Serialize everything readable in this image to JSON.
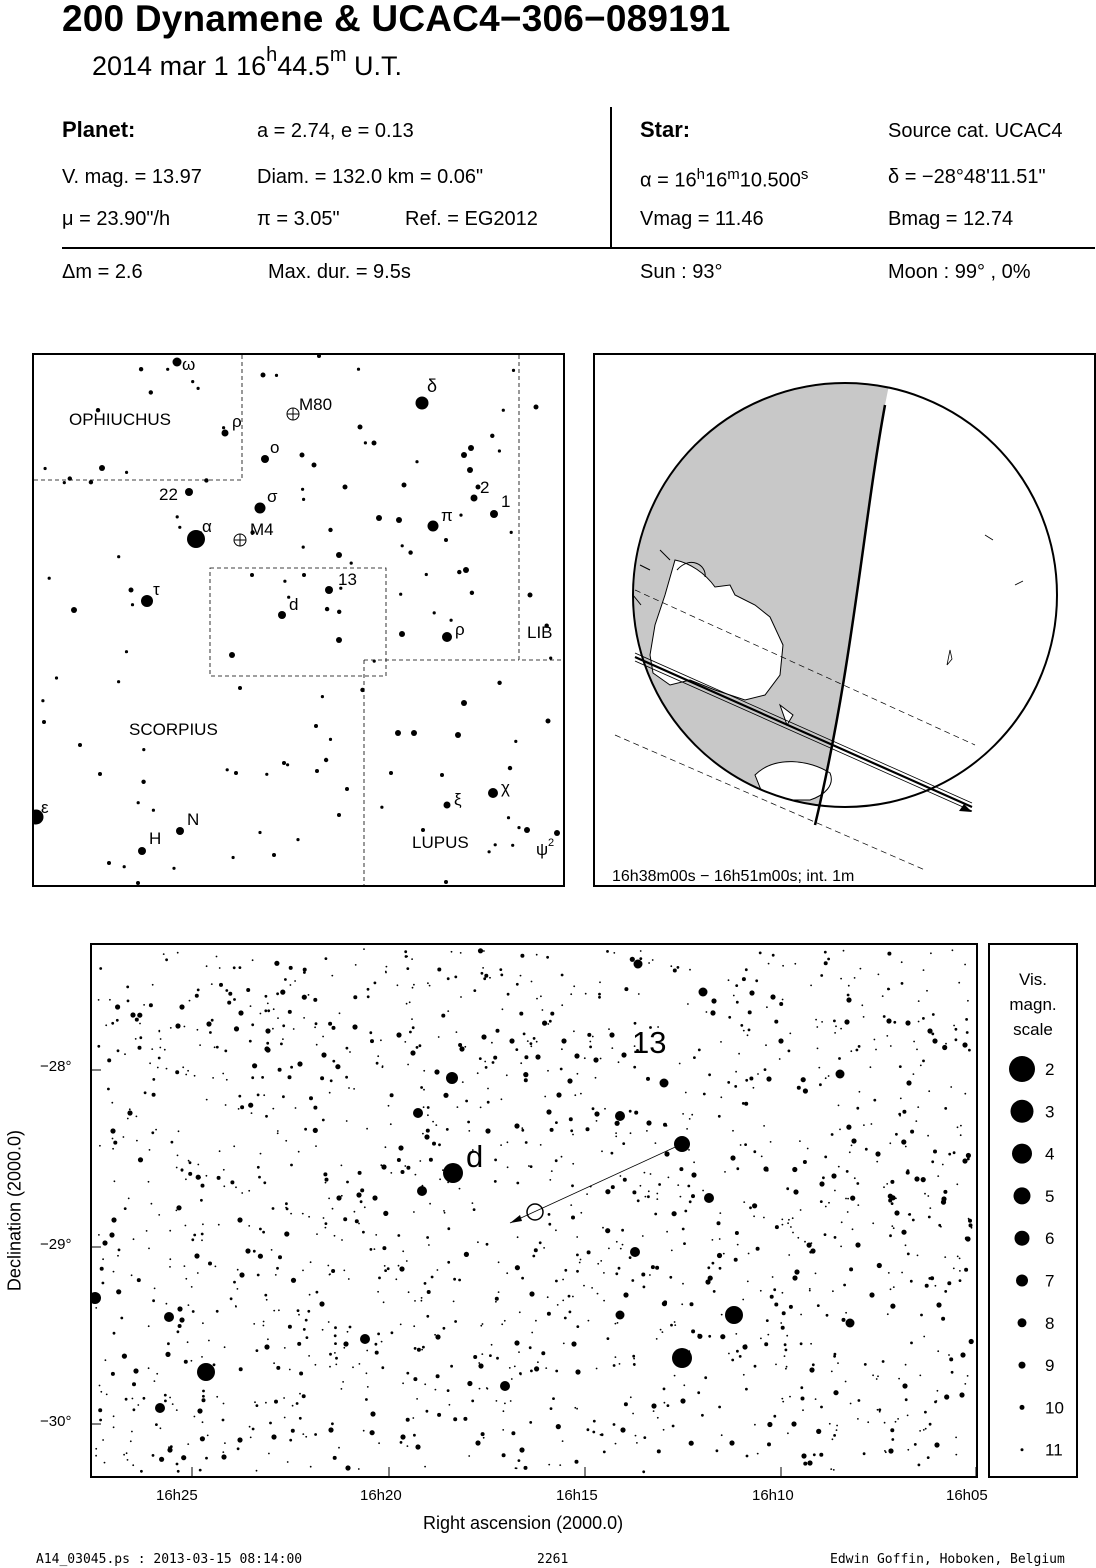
{
  "header": {
    "title": "200 Dynamene  &  UCAC4−306−089191",
    "subtitle_date": "2014 mar  1  16",
    "subtitle_h": "h",
    "subtitle_min": "44.5",
    "subtitle_m": "m",
    "subtitle_ut": " U.T."
  },
  "planet": {
    "heading": "Planet:",
    "orbit": "a = 2.74, e = 0.13",
    "vmag": "V. mag. = 13.97",
    "diam": "Diam. = 132.0 km = 0.06\"",
    "mu": "μ =  23.90\"/h",
    "pi": "π =  3.05\"",
    "ref": "Ref. = EG2012"
  },
  "star": {
    "heading": "Star:",
    "source": "Source cat.  UCAC4",
    "alpha_prefix": "α = 16",
    "alpha_h": "h",
    "alpha_mid": "16",
    "alpha_m": "m",
    "alpha_sec": "10.500",
    "alpha_s": "s",
    "delta": "δ = −28°48'11.51\"",
    "vmag": "Vmag = 11.46",
    "bmag": "Bmag = 12.74"
  },
  "event": {
    "dm": "Δm = 2.6",
    "maxdur": "Max. dur. = 9.5s",
    "sun": "Sun :  93°",
    "moon": "Moon :  99° ,  0%"
  },
  "finder_chart": {
    "constellations": [
      "OPHIUCHUS",
      "SCORPIUS",
      "LUPUS",
      "LIB"
    ],
    "labels": [
      "ω",
      "δ",
      "M80",
      "ρ",
      "o",
      "22",
      "σ",
      "2",
      "1",
      "π",
      "α",
      "M4",
      "τ",
      "13",
      "d",
      "ρ",
      "ε",
      "N",
      "H",
      "ξ",
      "χ",
      "ψ",
      "2"
    ]
  },
  "globe": {
    "caption": "16h38m00s − 16h51m00s; int.  1m"
  },
  "detail_chart": {
    "xlabel": "Right ascension (2000.0)",
    "ylabel": "Declination (2000.0)",
    "x_ticks": [
      "16h25",
      "16h20",
      "16h15",
      "16h10",
      "16h05"
    ],
    "y_ticks": [
      "−28°",
      "−29°",
      "−30°"
    ],
    "label_13": "13",
    "label_d": "d"
  },
  "legend": {
    "title_lines": [
      "Vis.",
      "magn.",
      "scale"
    ],
    "magnitudes": [
      "2",
      "3",
      "4",
      "5",
      "6",
      "7",
      "8",
      "9",
      "10",
      "11"
    ]
  },
  "footer": {
    "file": "A14_03045.ps : 2013-03-15 08:14:00",
    "number": "2261",
    "author": "Edwin Goffin, Hoboken, Belgium"
  }
}
